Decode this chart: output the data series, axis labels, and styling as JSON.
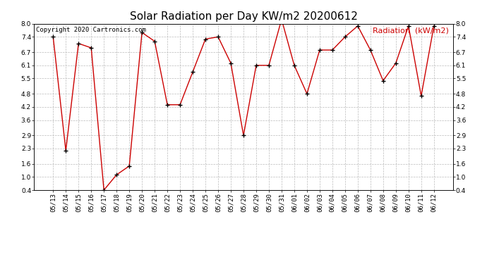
{
  "title": "Solar Radiation per Day KW/m2 20200612",
  "copyright_text": "Copyright 2020 Cartronics.com",
  "legend_label": "Radiation  (kW/m2)",
  "dates": [
    "05/13",
    "05/14",
    "05/15",
    "05/16",
    "05/17",
    "05/18",
    "05/19",
    "05/20",
    "05/21",
    "05/22",
    "05/23",
    "05/24",
    "05/25",
    "05/26",
    "05/27",
    "05/28",
    "05/29",
    "05/30",
    "05/31",
    "06/01",
    "06/02",
    "06/03",
    "06/04",
    "06/05",
    "06/06",
    "06/07",
    "06/08",
    "06/09",
    "06/10",
    "06/11",
    "06/12"
  ],
  "values": [
    7.4,
    2.2,
    7.1,
    6.9,
    0.4,
    1.1,
    1.5,
    7.6,
    7.2,
    4.3,
    4.3,
    5.8,
    7.3,
    7.4,
    6.2,
    2.9,
    6.1,
    6.1,
    8.2,
    6.1,
    4.8,
    6.8,
    6.8,
    7.4,
    7.9,
    6.8,
    5.4,
    6.2,
    7.9,
    4.7,
    7.9
  ],
  "ylim": [
    0.4,
    8.0
  ],
  "yticks": [
    0.4,
    1.0,
    1.6,
    2.3,
    2.9,
    3.6,
    4.2,
    4.8,
    5.5,
    6.1,
    6.7,
    7.4,
    8.0
  ],
  "line_color": "#cc0000",
  "marker_color": "#000000",
  "grid_color": "#bbbbbb",
  "bg_color": "#ffffff",
  "title_fontsize": 11,
  "tick_fontsize": 6.5,
  "copyright_fontsize": 6.5,
  "legend_fontsize": 8
}
